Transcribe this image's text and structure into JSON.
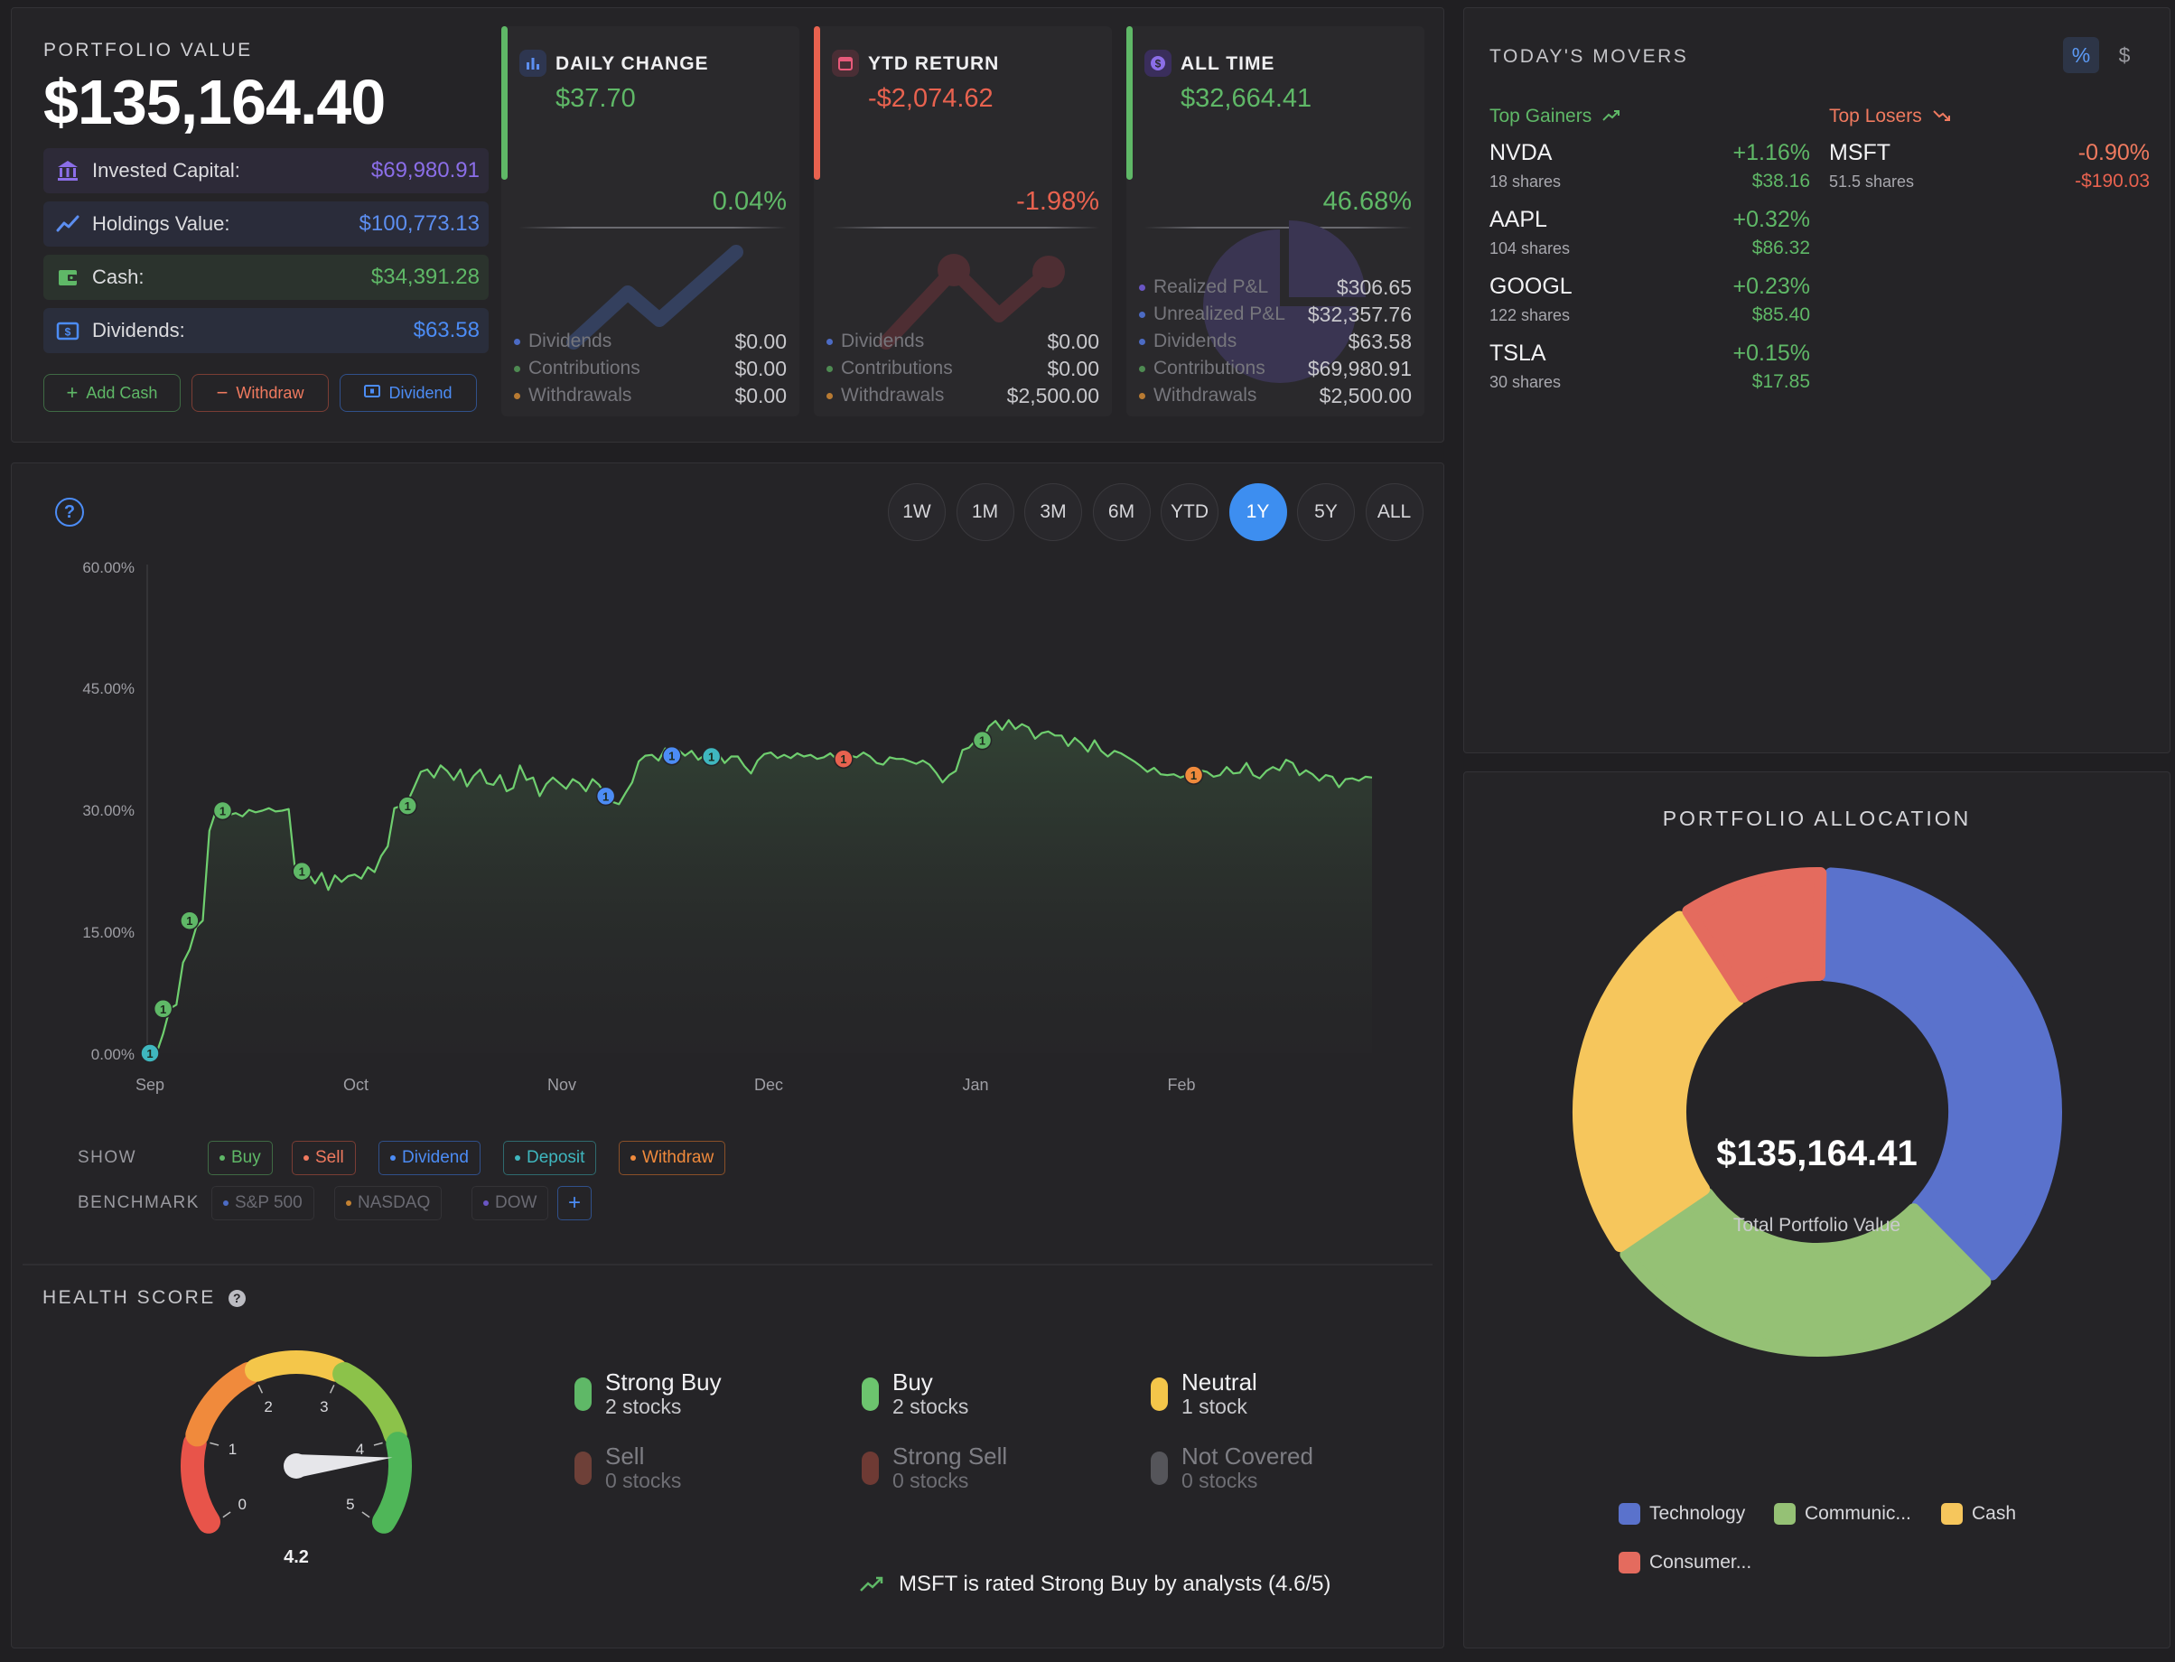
{
  "portfolio": {
    "label": "PORTFOLIO VALUE",
    "value": "$135,164.40",
    "rows": [
      {
        "icon": "bank-icon",
        "label": "Invested Capital:",
        "value": "$69,980.91",
        "color": "#8b6ee8"
      },
      {
        "icon": "trend-line-icon",
        "label": "Holdings Value:",
        "value": "$100,773.13",
        "color": "#5c8ef0"
      },
      {
        "icon": "wallet-icon",
        "label": "Cash:",
        "value": "$34,391.28",
        "color": "#5fb867"
      },
      {
        "icon": "dollar-bill-icon",
        "label": "Dividends:",
        "value": "$63.58",
        "color": "#4c8cf5"
      }
    ],
    "buttons": {
      "add_cash": "Add Cash",
      "withdraw": "Withdraw",
      "dividend": "Dividend"
    }
  },
  "metrics": [
    {
      "title": "DAILY CHANGE",
      "icon": "bar-chart-icon",
      "value": "$37.70",
      "percent": "0.04%",
      "color": "#5fb867",
      "rows": [
        {
          "k": "Dividends",
          "v": "$0.00"
        },
        {
          "k": "Contributions",
          "v": "$0.00"
        },
        {
          "k": "Withdrawals",
          "v": "$0.00"
        }
      ]
    },
    {
      "title": "YTD RETURN",
      "icon": "calendar-icon",
      "value": "-$2,074.62",
      "percent": "-1.98%",
      "color": "#e8624f",
      "rows": [
        {
          "k": "Dividends",
          "v": "$0.00"
        },
        {
          "k": "Contributions",
          "v": "$0.00"
        },
        {
          "k": "Withdrawals",
          "v": "$2,500.00"
        }
      ]
    },
    {
      "title": "ALL TIME",
      "icon": "dollar-coin-icon",
      "value": "$32,664.41",
      "percent": "46.68%",
      "color": "#5fb867",
      "rows": [
        {
          "k": "Realized P&L",
          "v": "$306.65"
        },
        {
          "k": "Unrealized P&L",
          "v": "$32,357.76"
        },
        {
          "k": "Dividends",
          "v": "$63.58"
        },
        {
          "k": "Contributions",
          "v": "$69,980.91"
        },
        {
          "k": "Withdrawals",
          "v": "$2,500.00"
        }
      ]
    }
  ],
  "movers": {
    "title": "TODAY'S MOVERS",
    "toggle_percent": "%",
    "toggle_dollar": "$",
    "gainers_label": "Top Gainers",
    "losers_label": "Top Losers",
    "gainers": [
      {
        "symbol": "NVDA",
        "shares": "18 shares",
        "pct": "+1.16%",
        "value": "$38.16"
      },
      {
        "symbol": "AAPL",
        "shares": "104 shares",
        "pct": "+0.32%",
        "value": "$86.32"
      },
      {
        "symbol": "GOOGL",
        "shares": "122 shares",
        "pct": "+0.23%",
        "value": "$85.40"
      },
      {
        "symbol": "TSLA",
        "shares": "30 shares",
        "pct": "+0.15%",
        "value": "$17.85"
      }
    ],
    "losers": [
      {
        "symbol": "MSFT",
        "shares": "51.5 shares",
        "pct": "-0.90%",
        "value": "-$190.03"
      }
    ]
  },
  "chart_controls": {
    "ranges": [
      "1W",
      "1M",
      "3M",
      "6M",
      "YTD",
      "1Y",
      "5Y",
      "ALL"
    ],
    "active_range": "1Y",
    "show_label": "SHOW",
    "benchmark_label": "BENCHMARK",
    "show_filters": [
      {
        "label": "Buy",
        "color": "#5fb867"
      },
      {
        "label": "Sell",
        "color": "#e8624f"
      },
      {
        "label": "Dividend",
        "color": "#4c8cf5"
      },
      {
        "label": "Deposit",
        "color": "#3fb7bf"
      },
      {
        "label": "Withdraw",
        "color": "#f08a3c"
      }
    ],
    "benchmarks": [
      {
        "label": "S&P 500",
        "color": "#4c6bc4"
      },
      {
        "label": "NASDAQ",
        "color": "#c48232"
      },
      {
        "label": "DOW",
        "color": "#6a56c4"
      }
    ],
    "add_benchmark": "+"
  },
  "chart_data": {
    "type": "line",
    "ylabel": "",
    "xlabel": "",
    "ylim": [
      0,
      60
    ],
    "y_ticks": [
      "0.00%",
      "15.00%",
      "30.00%",
      "45.00%",
      "60.00%"
    ],
    "x_ticks": [
      "Sep",
      "Oct",
      "Nov",
      "Dec",
      "Jan",
      "Feb"
    ],
    "grid": false,
    "series": [
      {
        "values": [
          0.0,
          0.0,
          2.4,
          5.5,
          6.0,
          11.2,
          12.8,
          15.6,
          16.4,
          27.5,
          30.0,
          29.8,
          29.5,
          29.7,
          29.3,
          30.1,
          29.8,
          30.0,
          30.3,
          29.9,
          30.0,
          30.2,
          22.5,
          21.9,
          22.2,
          21.0,
          22.3,
          20.2,
          22.0,
          21.2,
          21.9,
          22.1,
          21.6,
          23.0,
          22.4,
          24.4,
          25.6,
          30.3,
          30.6,
          31.1,
          32.9,
          34.8,
          35.1,
          34.1,
          35.6,
          34.9,
          33.8,
          35.1,
          33.0,
          34.3,
          35.1,
          33.4,
          33.2,
          34.4,
          32.4,
          32.8,
          35.6,
          33.8,
          34.1,
          31.8,
          33.3,
          34.1,
          33.4,
          32.7,
          33.9,
          33.4,
          32.4,
          33.9,
          33.2,
          31.9,
          31.1,
          30.8,
          32.2,
          33.5,
          36.1,
          36.8,
          36.9,
          36.2,
          37.7,
          36.8,
          37.5,
          36.8,
          37.4,
          36.3,
          36.9,
          36.8,
          37.1,
          35.9,
          36.7,
          36.7,
          35.5,
          34.6,
          36.2,
          37.0,
          37.2,
          36.5,
          36.9,
          36.5,
          37.1,
          36.7,
          36.9,
          36.4,
          36.6,
          37.1,
          36.3,
          36.3,
          36.8,
          36.6,
          37.2,
          36.7,
          35.9,
          35.7,
          36.6,
          36.4,
          36.4,
          36.1,
          35.8,
          36.2,
          35.7,
          34.7,
          33.5,
          34.4,
          34.9,
          37.5,
          37.8,
          38.7,
          38.8,
          40.4,
          41.1,
          40.0,
          41.2,
          40.1,
          40.7,
          40.3,
          38.9,
          39.6,
          39.8,
          39.3,
          39.3,
          38.0,
          39.0,
          38.3,
          37.3,
          38.7,
          37.4,
          36.7,
          37.4,
          37.1,
          36.6,
          36.1,
          35.5,
          34.8,
          35.3,
          34.5,
          34.4,
          34.5,
          34.1,
          34.4,
          33.6,
          35.0,
          34.8,
          34.2,
          34.4,
          35.4,
          34.6,
          34.7,
          35.9,
          34.4,
          34.0,
          34.9,
          35.4,
          35.0,
          36.3,
          35.9,
          34.4,
          35.0,
          34.5,
          33.7,
          34.4,
          34.2,
          32.9,
          33.9,
          34.0,
          33.7,
          34.2,
          34.1
        ]
      }
    ],
    "events": [
      {
        "kind": "Deposit",
        "label": "1",
        "y": 0.0
      },
      {
        "kind": "Buy",
        "label": "1",
        "y": 5.5
      },
      {
        "kind": "Buy",
        "label": "1",
        "y": 16.4
      },
      {
        "kind": "Buy",
        "label": "1",
        "y": 30.0
      },
      {
        "kind": "Buy",
        "label": "1",
        "y": 22.5
      },
      {
        "kind": "Buy",
        "label": "1",
        "y": 30.6
      },
      {
        "kind": "Dividend",
        "label": "1",
        "y": 31.8
      },
      {
        "kind": "Dividend",
        "label": "1",
        "y": 36.8
      },
      {
        "kind": "Deposit",
        "label": "1",
        "y": 36.7
      },
      {
        "kind": "Sell",
        "label": "1",
        "y": 36.4
      },
      {
        "kind": "Buy",
        "label": "1",
        "y": 38.7
      },
      {
        "kind": "Withdraw",
        "label": "1",
        "y": 34.4
      }
    ]
  },
  "health": {
    "title": "HEALTH SCORE",
    "score": "4.2",
    "score_value": 4.2,
    "gauge_ticks": [
      "0",
      "1",
      "2",
      "3",
      "4",
      "5"
    ],
    "ratings": [
      {
        "name": "Strong Buy",
        "count": "2 stocks",
        "color": "#5fb867",
        "dim": false
      },
      {
        "name": "Buy",
        "count": "2 stocks",
        "color": "#6cc46e",
        "dim": false
      },
      {
        "name": "Neutral",
        "count": "1 stock",
        "color": "#f4c64a",
        "dim": false
      },
      {
        "name": "Sell",
        "count": "0 stocks",
        "color": "#6e4038",
        "dim": true
      },
      {
        "name": "Strong Sell",
        "count": "0 stocks",
        "color": "#6e3a34",
        "dim": true
      },
      {
        "name": "Not Covered",
        "count": "0 stocks",
        "color": "#55555a",
        "dim": true
      }
    ],
    "insight": "MSFT is rated Strong Buy by analysts (4.6/5)"
  },
  "allocation": {
    "title": "PORTFOLIO ALLOCATION",
    "center_value": "$135,164.41",
    "center_label": "Total Portfolio Value",
    "slices": [
      {
        "label": "Technology",
        "share": 0.367,
        "color": "#5a72cc"
      },
      {
        "label": "Communic...",
        "share": 0.279,
        "color": "#95c175"
      },
      {
        "label": "Cash",
        "share": 0.254,
        "color": "#f6c65c"
      },
      {
        "label": "Consumer...",
        "share": 0.1,
        "color": "#e46b5e"
      }
    ]
  }
}
